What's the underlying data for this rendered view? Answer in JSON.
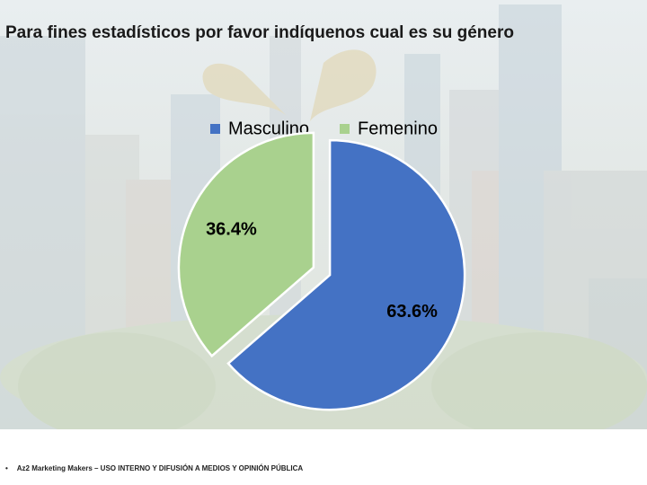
{
  "slide": {
    "title": "Para fines estadísticos por favor indíquenos cual es su género",
    "footer": "Az2 Marketing Makers – USO INTERNO Y DIFUSIÓN A MEDIOS Y OPINIÓN PÚBLICA",
    "footer_bullet": "•"
  },
  "chart_data": {
    "type": "pie",
    "title": "",
    "legend_position": "top",
    "categories": [
      "Masculino",
      "Femenino"
    ],
    "values": [
      63.6,
      36.4
    ],
    "labels": [
      "63.6%",
      "36.4%"
    ],
    "colors": [
      "#4472c4",
      "#a9d18e"
    ],
    "exploded": true
  }
}
